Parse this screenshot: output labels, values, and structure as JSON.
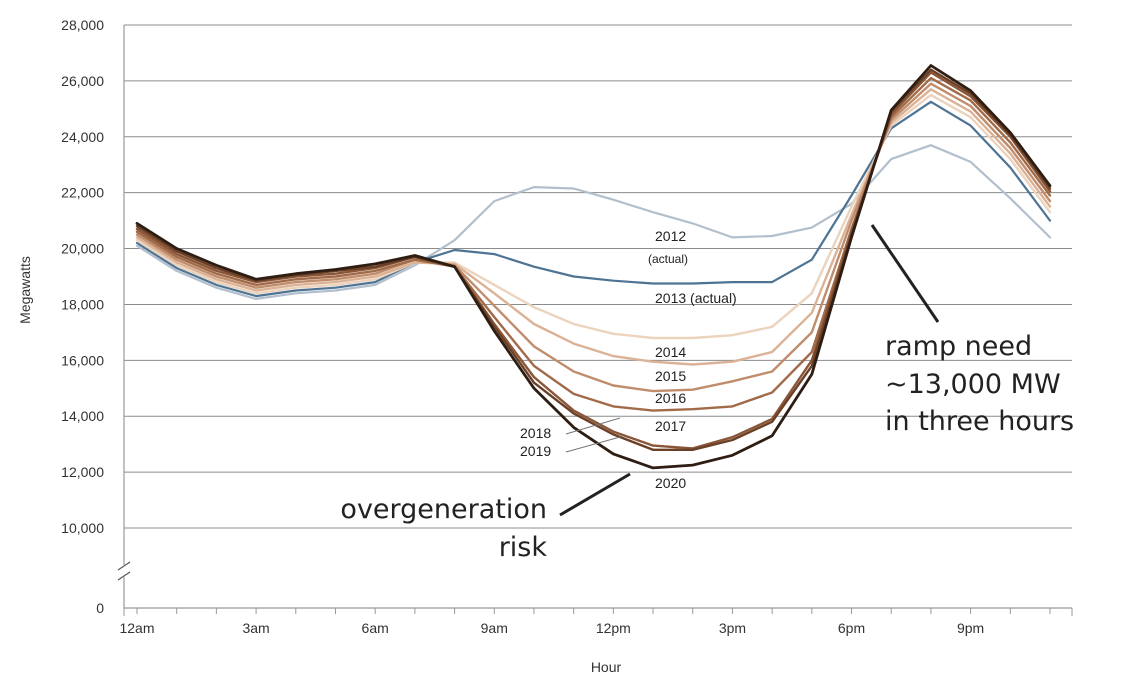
{
  "chart_data": {
    "type": "line",
    "xlabel": "Hour",
    "ylabel": "Megawatts",
    "ylim": [
      10000,
      28000
    ],
    "y_axis_break": true,
    "y_ticks": [
      "0",
      "10,000",
      "12,000",
      "14,000",
      "16,000",
      "18,000",
      "20,000",
      "22,000",
      "24,000",
      "26,000",
      "28,000"
    ],
    "x_tick_labels": [
      "12am",
      "3am",
      "6am",
      "9am",
      "12pm",
      "3pm",
      "6pm",
      "9pm"
    ],
    "grid": "horizontal",
    "x": [
      0,
      1,
      2,
      3,
      4,
      5,
      6,
      7,
      8,
      9,
      10,
      11,
      12,
      13,
      14,
      15,
      16,
      17,
      18,
      19,
      20,
      21,
      22,
      23
    ],
    "series": [
      {
        "name": "2012",
        "sublabel": "(actual)",
        "color": "#b3bfcc",
        "values": [
          20100,
          19200,
          18600,
          18200,
          18400,
          18500,
          18700,
          19400,
          20300,
          21700,
          22200,
          22150,
          21750,
          21300,
          20900,
          20400,
          20450,
          20750,
          21600,
          23200,
          23700,
          23100,
          21800,
          20400
        ]
      },
      {
        "name": "2013 (actual)",
        "color": "#4e7393",
        "values": [
          20200,
          19300,
          18700,
          18300,
          18500,
          18600,
          18800,
          19500,
          19950,
          19800,
          19350,
          19000,
          18850,
          18750,
          18750,
          18800,
          18800,
          19600,
          21900,
          24300,
          25250,
          24400,
          22900,
          21000
        ]
      },
      {
        "name": "2014",
        "color": "#ecd3bd",
        "values": [
          20300,
          19400,
          18800,
          18400,
          18600,
          18700,
          18900,
          19500,
          19500,
          18700,
          17900,
          17300,
          16950,
          16800,
          16800,
          16900,
          17200,
          18400,
          21500,
          24400,
          25500,
          24700,
          23200,
          21300
        ]
      },
      {
        "name": "2015",
        "color": "#dbb295",
        "values": [
          20400,
          19500,
          18900,
          18500,
          18700,
          18800,
          19000,
          19500,
          19450,
          18400,
          17300,
          16600,
          16150,
          15950,
          15850,
          15950,
          16300,
          17700,
          21200,
          24500,
          25700,
          24900,
          23400,
          21500
        ]
      },
      {
        "name": "2016",
        "color": "#c08d6c",
        "values": [
          20500,
          19600,
          19000,
          18600,
          18800,
          18900,
          19100,
          19600,
          19400,
          17950,
          16500,
          15600,
          15100,
          14900,
          14950,
          15250,
          15600,
          17000,
          21000,
          24600,
          25900,
          25100,
          23600,
          21700
        ]
      },
      {
        "name": "2017",
        "color": "#a16b4a",
        "values": [
          20600,
          19700,
          19100,
          18700,
          18900,
          19000,
          19200,
          19600,
          19350,
          17550,
          15800,
          14800,
          14350,
          14200,
          14250,
          14350,
          14850,
          16300,
          20700,
          24700,
          26100,
          25300,
          23800,
          21900
        ]
      },
      {
        "name": "2018",
        "color": "#8a5638",
        "values": [
          20700,
          19800,
          19200,
          18800,
          19000,
          19100,
          19300,
          19700,
          19350,
          17300,
          15400,
          14200,
          13450,
          12950,
          12850,
          13250,
          13900,
          16000,
          20600,
          24800,
          26300,
          25450,
          24000,
          22050
        ]
      },
      {
        "name": "2019",
        "color": "#6b4027",
        "values": [
          20800,
          19900,
          19300,
          18850,
          19050,
          19200,
          19350,
          19700,
          19350,
          17200,
          15200,
          14100,
          13350,
          12800,
          12800,
          13150,
          13800,
          15800,
          20500,
          24900,
          26400,
          25550,
          24050,
          22150
        ]
      },
      {
        "name": "2020",
        "color": "#2e1d12",
        "values": [
          20900,
          20000,
          19400,
          18900,
          19100,
          19250,
          19450,
          19750,
          19350,
          17050,
          15000,
          13600,
          12650,
          12150,
          12250,
          12600,
          13300,
          15500,
          20400,
          24950,
          26550,
          25650,
          24150,
          22250
        ]
      }
    ],
    "annotations": {
      "ramp": [
        "ramp need",
        "~13,000 MW",
        "in three hours"
      ],
      "overgen": [
        "overgeneration",
        "risk"
      ]
    }
  }
}
